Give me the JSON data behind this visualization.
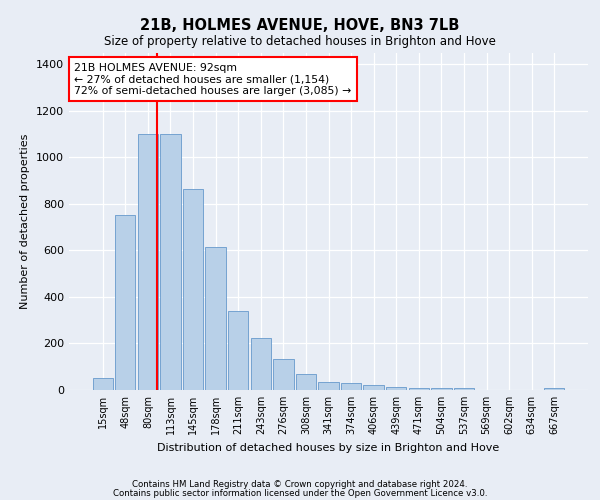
{
  "title": "21B, HOLMES AVENUE, HOVE, BN3 7LB",
  "subtitle": "Size of property relative to detached houses in Brighton and Hove",
  "xlabel": "Distribution of detached houses by size in Brighton and Hove",
  "ylabel": "Number of detached properties",
  "categories": [
    "15sqm",
    "48sqm",
    "80sqm",
    "113sqm",
    "145sqm",
    "178sqm",
    "211sqm",
    "243sqm",
    "276sqm",
    "308sqm",
    "341sqm",
    "374sqm",
    "406sqm",
    "439sqm",
    "471sqm",
    "504sqm",
    "537sqm",
    "569sqm",
    "602sqm",
    "634sqm",
    "667sqm"
  ],
  "values": [
    50,
    750,
    1100,
    1100,
    865,
    615,
    340,
    225,
    135,
    70,
    35,
    30,
    20,
    13,
    10,
    10,
    10,
    0,
    0,
    0,
    10
  ],
  "bar_color": "#b8d0e8",
  "bar_edge_color": "#6699cc",
  "vline_color": "red",
  "annotation_text": "21B HOLMES AVENUE: 92sqm\n← 27% of detached houses are smaller (1,154)\n72% of semi-detached houses are larger (3,085) →",
  "annotation_box_color": "white",
  "annotation_box_edge": "red",
  "ylim": [
    0,
    1450
  ],
  "yticks": [
    0,
    200,
    400,
    600,
    800,
    1000,
    1200,
    1400
  ],
  "footer1": "Contains HM Land Registry data © Crown copyright and database right 2024.",
  "footer2": "Contains public sector information licensed under the Open Government Licence v3.0.",
  "bg_color": "#e8edf5",
  "plot_bg_color": "#e8edf5"
}
